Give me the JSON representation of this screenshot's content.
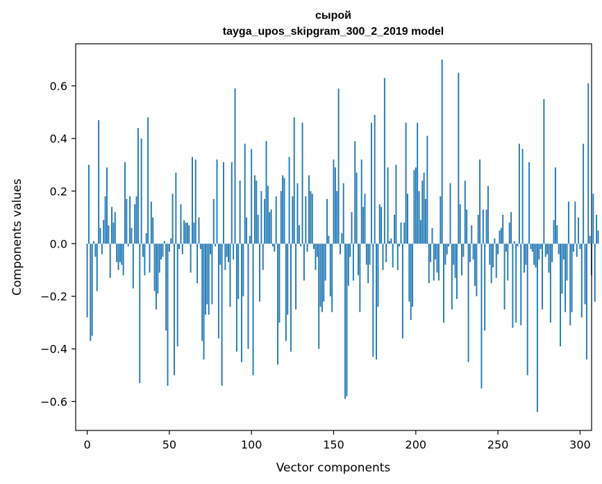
{
  "chart_data": {
    "type": "bar",
    "title_line1": "сырой",
    "title_line2": "tayga_upos_skipgram_300_2_2019 model",
    "xlabel": "Vector components",
    "ylabel": "Components values",
    "xlim": [
      -7,
      307
    ],
    "ylim": [
      -0.71,
      0.76
    ],
    "xticks": [
      0,
      50,
      100,
      150,
      200,
      250,
      300
    ],
    "xtick_labels": [
      "0",
      "50",
      "100",
      "150",
      "200",
      "250",
      "300"
    ],
    "yticks": [
      -0.6,
      -0.4,
      -0.2,
      0.0,
      0.2,
      0.4,
      0.6
    ],
    "ytick_labels": [
      "−0.6",
      "−0.4",
      "−0.2",
      "0.0",
      "0.2",
      "0.4",
      "0.6"
    ],
    "bar_color": "#1f77b4",
    "grid": false,
    "values": [
      -0.28,
      0.3,
      -0.37,
      -0.35,
      0.01,
      -0.05,
      -0.18,
      0.47,
      0.06,
      -0.04,
      0.09,
      0.18,
      0.29,
      0.07,
      -0.13,
      0.14,
      0.08,
      0.12,
      -0.07,
      -0.1,
      -0.07,
      -0.08,
      -0.12,
      0.31,
      0.17,
      -0.01,
      0.18,
      0.06,
      -0.17,
      0.15,
      0.18,
      0.44,
      -0.53,
      0.4,
      -0.05,
      -0.12,
      0.04,
      0.48,
      -0.11,
      0.16,
      0.1,
      -0.18,
      -0.25,
      -0.19,
      -0.11,
      -0.06,
      -0.05,
      0.01,
      -0.33,
      -0.54,
      -0.03,
      0.02,
      0.19,
      -0.5,
      0.27,
      -0.39,
      -0.02,
      0.15,
      -0.04,
      0.09,
      0.08,
      0.08,
      0.07,
      -0.11,
      0.33,
      0.08,
      0.32,
      -0.15,
      0.1,
      -0.02,
      -0.37,
      -0.44,
      -0.27,
      -0.23,
      -0.27,
      -0.04,
      -0.23,
      0.17,
      -0.01,
      0.32,
      -0.36,
      -0.08,
      -0.54,
      0.31,
      -0.1,
      -0.05,
      -0.07,
      -0.24,
      0.31,
      -0.06,
      0.59,
      -0.41,
      -0.21,
      0.24,
      -0.45,
      -0.2,
      0.38,
      0.1,
      -0.4,
      0.03,
      0.36,
      -0.5,
      0.26,
      0.24,
      0.11,
      -0.22,
      0.2,
      -0.1,
      0.17,
      0.39,
      0.22,
      0.12,
      0.13,
      -0.01,
      -0.03,
      0.18,
      -0.46,
      -0.3,
      0.2,
      0.26,
      0.25,
      -0.37,
      -0.27,
      0.33,
      -0.41,
      0.18,
      0.48,
      -0.25,
      0.23,
      0.07,
      -0.01,
      0.46,
      -0.14,
      0.18,
      -0.03,
      0.26,
      0.2,
      0.19,
      -0.02,
      -0.1,
      -0.05,
      -0.4,
      -0.24,
      -0.26,
      -0.22,
      -0.14,
      0.17,
      0.03,
      -0.2,
      -0.26,
      0.32,
      0.29,
      0.2,
      0.59,
      -0.04,
      0.04,
      0.23,
      -0.59,
      -0.58,
      -0.16,
      -0.05,
      0.12,
      -0.14,
      0.39,
      0.27,
      -0.12,
      -0.26,
      0.32,
      0.14,
      0.19,
      -0.08,
      -0.15,
      -0.08,
      0.46,
      -0.43,
      0.49,
      -0.44,
      -0.24,
      0.15,
      0.14,
      -0.1,
      0.63,
      -0.07,
      0.29,
      0.01,
      0.02,
      -0.09,
      0.11,
      0.3,
      -0.1,
      -0.01,
      0.08,
      -0.36,
      0.08,
      0.46,
      0.19,
      -0.22,
      -0.29,
      -0.24,
      0.28,
      0.29,
      0.46,
      0.2,
      0.09,
      0.24,
      0.27,
      0.17,
      0.41,
      -0.15,
      -0.07,
      0.06,
      -0.14,
      -0.06,
      -0.11,
      -0.14,
      0.18,
      0.7,
      -0.3,
      -0.08,
      -0.04,
      -0.01,
      0.23,
      -0.25,
      -0.08,
      -0.13,
      -0.21,
      0.65,
      0.15,
      -0.12,
      -0.05,
      0.24,
      0.13,
      -0.45,
      -0.07,
      0.07,
      -0.06,
      -0.16,
      -0.2,
      0.11,
      0.32,
      -0.55,
      0.13,
      -0.33,
      0.13,
      0.22,
      -0.08,
      -0.15,
      -0.09,
      0.02,
      -0.13,
      -0.04,
      0.05,
      0.06,
      0.11,
      -0.25,
      -0.03,
      -0.14,
      0.08,
      0.12,
      -0.32,
      0.01,
      -0.3,
      -0.01,
      0.38,
      -0.31,
      0.36,
      -0.11,
      -0.08,
      -0.5,
      0.31,
      -0.02,
      -0.03,
      -0.08,
      -0.09,
      -0.64,
      -0.06,
      -0.02,
      -0.25,
      0.55,
      -0.05,
      -0.04,
      -0.11,
      -0.3,
      -0.07,
      0.09,
      0.29,
      0.07,
      -0.04,
      -0.39,
      -0.19,
      -0.06,
      -0.26,
      -0.14,
      0.16,
      -0.31,
      -0.26,
      -0.03,
      0.16,
      -0.05,
      0.1,
      -0.02,
      -0.28,
      0.38,
      -0.23,
      -0.44,
      0.61,
      0.03,
      -0.12,
      0.19,
      -0.22,
      0.11,
      0.05
    ]
  }
}
